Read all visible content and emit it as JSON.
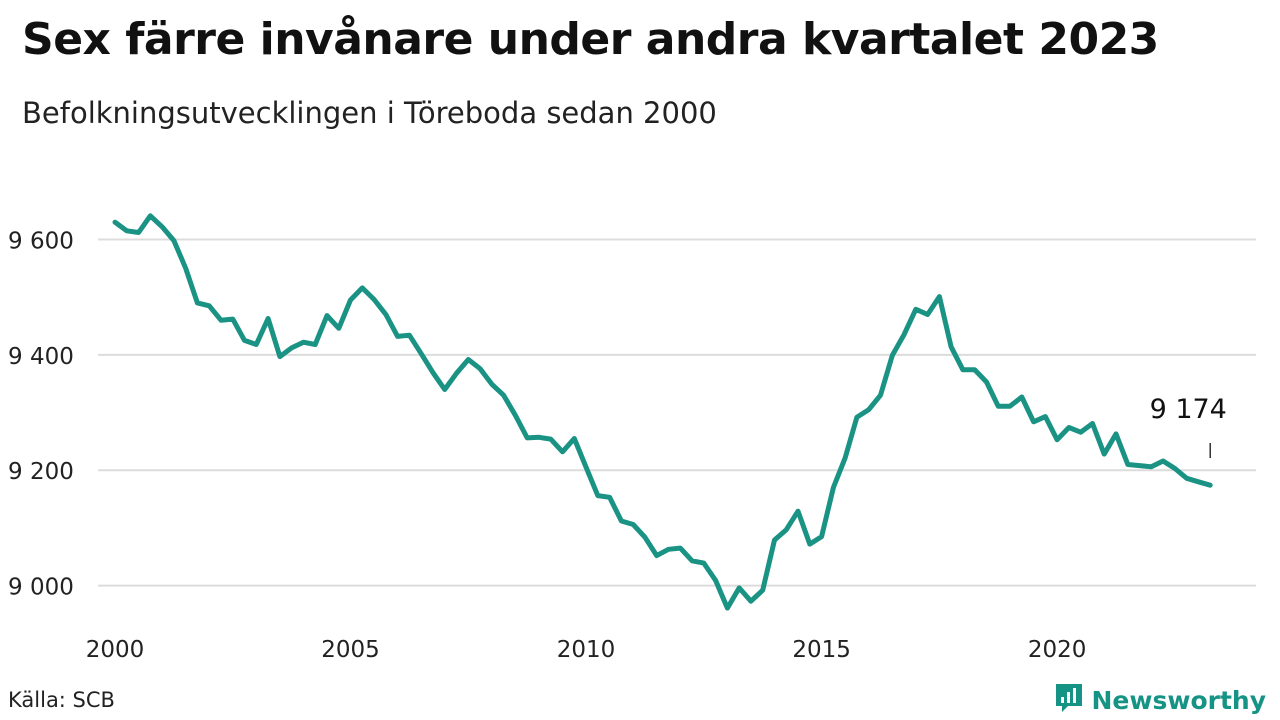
{
  "title": "Sex färre invånare under andra kvartalet 2023",
  "subtitle": "Befolkningsutvecklingen i Töreboda sedan 2000",
  "source": "Källa: SCB",
  "brand": {
    "name": "Newsworthy",
    "icon": "newsworthy-logo-icon",
    "color": "#159384"
  },
  "chart_data": {
    "type": "line",
    "title": "Sex färre invånare under andra kvartalet 2023",
    "subtitle": "Befolkningsutvecklingen i Töreboda sedan 2000",
    "xlabel": "",
    "ylabel": "",
    "x_ticks": [
      "2000",
      "2005",
      "2010",
      "2015",
      "2020"
    ],
    "y_ticks": [
      "9 000",
      "9 200",
      "9 400",
      "9 600"
    ],
    "y_tick_values": [
      9000,
      9200,
      9400,
      9600
    ],
    "xlim": [
      2000.0,
      2023.5
    ],
    "ylim": [
      8930,
      9710
    ],
    "grid": true,
    "line_color": "#1a9384",
    "end_label": "9 174",
    "series": [
      {
        "x": [
          2000.0,
          2000.25,
          2000.5,
          2000.75,
          2001.0,
          2001.25,
          2001.5,
          2001.75,
          2002.0,
          2002.25,
          2002.5,
          2002.75,
          2003.0,
          2003.25,
          2003.5,
          2003.75,
          2004.0,
          2004.25,
          2004.5,
          2004.75,
          2005.0,
          2005.25,
          2005.5,
          2005.75,
          2006.0,
          2006.25,
          2006.5,
          2006.75,
          2007.0,
          2007.25,
          2007.5,
          2007.75,
          2008.0,
          2008.25,
          2008.5,
          2008.75,
          2009.0,
          2009.25,
          2009.5,
          2009.75,
          2010.0,
          2010.25,
          2010.5,
          2010.75,
          2011.0,
          2011.25,
          2011.5,
          2011.75,
          2012.0,
          2012.25,
          2012.5,
          2012.75,
          2013.0,
          2013.25,
          2013.5,
          2013.75,
          2014.0,
          2014.25,
          2014.5,
          2014.75,
          2015.0,
          2015.25,
          2015.5,
          2015.75,
          2016.0,
          2016.25,
          2016.5,
          2016.75,
          2017.0,
          2017.25,
          2017.5,
          2017.75,
          2018.0,
          2018.25,
          2018.5,
          2018.75,
          2019.0,
          2019.25,
          2019.5,
          2019.75,
          2020.0,
          2020.25,
          2020.5,
          2020.75,
          2021.0,
          2021.25,
          2021.5,
          2021.75,
          2022.0,
          2022.25,
          2022.5,
          2022.75,
          2023.0,
          2023.25
        ],
        "values": [
          9630,
          9615,
          9612,
          9641,
          9622,
          9598,
          9550,
          9490,
          9485,
          9460,
          9462,
          9425,
          9418,
          9463,
          9397,
          9412,
          9422,
          9418,
          9468,
          9446,
          9495,
          9516,
          9496,
          9470,
          9432,
          9434,
          9402,
          9369,
          9340,
          9368,
          9392,
          9376,
          9349,
          9330,
          9295,
          9256,
          9257,
          9254,
          9232,
          9255,
          9205,
          9156,
          9153,
          9112,
          9106,
          9084,
          9052,
          9063,
          9065,
          9043,
          9039,
          9009,
          8961,
          8996,
          8973,
          8992,
          9079,
          9097,
          9129,
          9072,
          9085,
          9170,
          9221,
          9292,
          9305,
          9330,
          9399,
          9435,
          9479,
          9470,
          9501,
          9414,
          9374,
          9374,
          9353,
          9311,
          9311,
          9327,
          9284,
          9293,
          9253,
          9274,
          9266,
          9281,
          9228,
          9263,
          9210,
          9208,
          9206,
          9216,
          9203,
          9186,
          9180,
          9174
        ]
      }
    ]
  }
}
